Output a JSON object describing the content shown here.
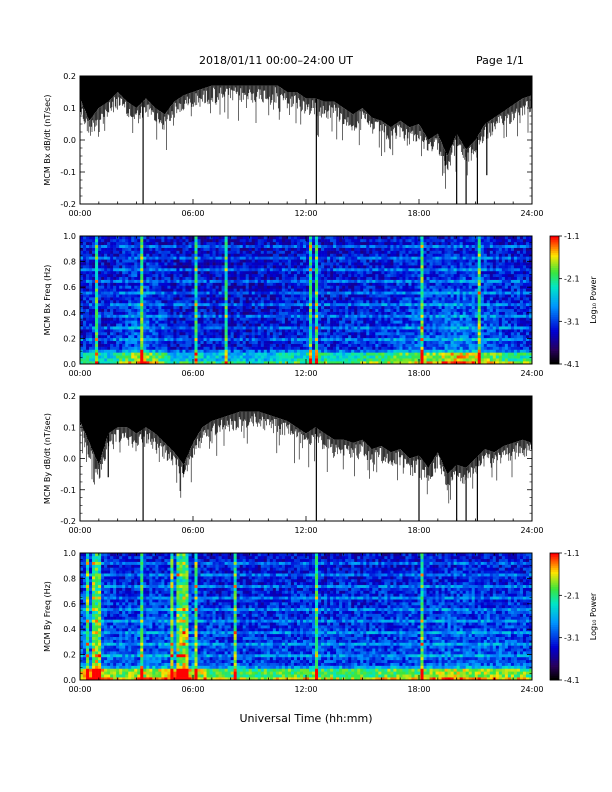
{
  "header": {
    "title": "2018/01/11  00:00–24:00 UT",
    "page": "Page 1/1"
  },
  "xlabel": "Universal Time (hh:mm)",
  "colors": {
    "trace": "#000000",
    "background": "#ffffff"
  },
  "chart_data": [
    {
      "type": "line",
      "ylabel": "MCM Bx dB/dt (nT/sec)",
      "xlim": [
        0,
        24
      ],
      "ylim": [
        -0.2,
        0.2
      ],
      "x_ticks": [
        "00:00",
        "06:00",
        "12:00",
        "18:00",
        "24:00"
      ],
      "y_ticks": [
        "-0.2",
        "-0.1",
        "0.0",
        "0.1",
        "0.2"
      ],
      "series": [
        {
          "x": [
            0,
            0.5,
            1,
            1.5,
            2,
            2.5,
            3,
            3.5,
            4,
            4.5,
            5,
            5.5,
            6,
            6.5,
            7,
            7.5,
            8,
            8.5,
            9,
            9.5,
            10,
            10.5,
            11,
            11.5,
            12,
            12.5,
            13,
            13.5,
            14,
            14.5,
            15,
            15.5,
            16,
            16.5,
            17,
            17.5,
            18,
            18.5,
            19,
            19.5,
            20,
            20.5,
            21,
            21.5,
            22,
            22.5,
            23,
            23.5,
            24
          ],
          "upper": [
            0.2,
            0.2,
            0.2,
            0.2,
            0.2,
            0.2,
            0.2,
            0.2,
            0.2,
            0.2,
            0.2,
            0.2,
            0.2,
            0.2,
            0.2,
            0.2,
            0.2,
            0.2,
            0.2,
            0.2,
            0.2,
            0.2,
            0.2,
            0.2,
            0.2,
            0.2,
            0.2,
            0.2,
            0.2,
            0.2,
            0.2,
            0.2,
            0.2,
            0.2,
            0.2,
            0.2,
            0.2,
            0.2,
            0.2,
            0.2,
            0.2,
            0.2,
            0.2,
            0.2,
            0.2,
            0.2,
            0.2,
            0.2,
            0.2
          ],
          "lower": [
            0.13,
            0.06,
            0.1,
            0.12,
            0.15,
            0.12,
            0.1,
            0.13,
            0.1,
            0.08,
            0.12,
            0.14,
            0.15,
            0.16,
            0.17,
            0.17,
            0.17,
            0.17,
            0.17,
            0.17,
            0.17,
            0.17,
            0.15,
            0.15,
            0.13,
            0.13,
            0.12,
            0.12,
            0.1,
            0.08,
            0.1,
            0.07,
            0.06,
            0.04,
            0.06,
            0.04,
            0.05,
            0.0,
            0.02,
            -0.05,
            0.02,
            -0.03,
            0.0,
            0.05,
            0.07,
            0.09,
            0.11,
            0.13,
            0.14
          ]
        }
      ],
      "spikes": [
        {
          "x": 3.35,
          "y": -0.2
        },
        {
          "x": 12.55,
          "y": -0.2
        },
        {
          "x": 19.4,
          "y": -0.08
        },
        {
          "x": 20.0,
          "y": -0.2
        },
        {
          "x": 20.5,
          "y": -0.2
        },
        {
          "x": 21.1,
          "y": -0.2
        },
        {
          "x": 21.6,
          "y": -0.11
        }
      ]
    },
    {
      "type": "heatmap",
      "ylabel": "MCM Bx Freq (Hz)",
      "xlim": [
        0,
        24
      ],
      "ylim": [
        0,
        1
      ],
      "x_ticks": [
        "00:00",
        "06:00",
        "12:00",
        "18:00",
        "24:00"
      ],
      "y_ticks": [
        "0.0",
        "0.2",
        "0.4",
        "0.6",
        "0.8",
        "1.0"
      ],
      "colorbar": {
        "label": "Log₁₀ Power",
        "range": [
          -4.1,
          -1.1
        ],
        "ticks": [
          "-4.1",
          "-3.1",
          "-2.1",
          "-1.1"
        ]
      },
      "activity": [
        {
          "t": 0,
          "a": 0.3
        },
        {
          "t": 1.5,
          "a": 0.25
        },
        {
          "t": 3.3,
          "a": 0.7
        },
        {
          "t": 5,
          "a": 0.2
        },
        {
          "t": 6,
          "a": 0.25
        },
        {
          "t": 9,
          "a": 0.15
        },
        {
          "t": 12.5,
          "a": 0.35
        },
        {
          "t": 14,
          "a": 0.3
        },
        {
          "t": 16,
          "a": 0.4
        },
        {
          "t": 17.5,
          "a": 0.55
        },
        {
          "t": 19,
          "a": 0.6
        },
        {
          "t": 20,
          "a": 0.75
        },
        {
          "t": 21,
          "a": 0.65
        },
        {
          "t": 22,
          "a": 0.5
        },
        {
          "t": 24,
          "a": 0.35
        }
      ],
      "vertical_stripes": [
        0.9,
        3.35,
        6.1,
        7.7,
        12.3,
        12.55,
        18.2,
        21.2
      ]
    },
    {
      "type": "line",
      "ylabel": "MCM By dB/dt (nT/sec)",
      "xlim": [
        0,
        24
      ],
      "ylim": [
        -0.2,
        0.2
      ],
      "x_ticks": [
        "00:00",
        "06:00",
        "12:00",
        "18:00",
        "24:00"
      ],
      "y_ticks": [
        "-0.2",
        "-0.1",
        "0.0",
        "0.1",
        "0.2"
      ],
      "series": [
        {
          "x": [
            0,
            0.5,
            1,
            1.5,
            2,
            2.5,
            3,
            3.5,
            4,
            4.5,
            5,
            5.5,
            6,
            6.5,
            7,
            7.5,
            8,
            8.5,
            9,
            9.5,
            10,
            10.5,
            11,
            11.5,
            12,
            12.5,
            13,
            13.5,
            14,
            14.5,
            15,
            15.5,
            16,
            16.5,
            17,
            17.5,
            18,
            18.5,
            19,
            19.5,
            20,
            20.5,
            21,
            21.5,
            22,
            22.5,
            23,
            23.5,
            24
          ],
          "upper": [
            0.2,
            0.2,
            0.2,
            0.2,
            0.2,
            0.2,
            0.2,
            0.2,
            0.2,
            0.2,
            0.2,
            0.2,
            0.2,
            0.2,
            0.2,
            0.2,
            0.2,
            0.2,
            0.2,
            0.2,
            0.2,
            0.2,
            0.2,
            0.2,
            0.2,
            0.2,
            0.2,
            0.2,
            0.2,
            0.2,
            0.2,
            0.2,
            0.2,
            0.2,
            0.2,
            0.2,
            0.2,
            0.2,
            0.2,
            0.2,
            0.2,
            0.2,
            0.2,
            0.2,
            0.2,
            0.2,
            0.2,
            0.2,
            0.2
          ],
          "lower": [
            0.12,
            0.05,
            -0.02,
            0.08,
            0.1,
            0.1,
            0.08,
            0.1,
            0.08,
            0.05,
            0.02,
            -0.02,
            0.05,
            0.1,
            0.12,
            0.13,
            0.14,
            0.15,
            0.15,
            0.15,
            0.14,
            0.13,
            0.12,
            0.1,
            0.08,
            0.1,
            0.08,
            0.06,
            0.06,
            0.05,
            0.06,
            0.03,
            0.04,
            0.02,
            0.03,
            0.0,
            0.01,
            -0.03,
            0.02,
            -0.05,
            -0.02,
            -0.03,
            0.0,
            0.03,
            0.02,
            0.04,
            0.05,
            0.06,
            0.05
          ]
        }
      ],
      "spikes": [
        {
          "x": 1.5,
          "y": -0.06
        },
        {
          "x": 3.35,
          "y": -0.2
        },
        {
          "x": 5.5,
          "y": -0.05
        },
        {
          "x": 12.55,
          "y": -0.2
        },
        {
          "x": 18.0,
          "y": -0.2
        },
        {
          "x": 20.0,
          "y": -0.2
        },
        {
          "x": 20.5,
          "y": -0.2
        },
        {
          "x": 21.1,
          "y": -0.2
        }
      ]
    },
    {
      "type": "heatmap",
      "ylabel": "MCM By Freq (Hz)",
      "xlim": [
        0,
        24
      ],
      "ylim": [
        0,
        1
      ],
      "x_ticks": [
        "00:00",
        "06:00",
        "12:00",
        "18:00",
        "24:00"
      ],
      "y_ticks": [
        "0.0",
        "0.2",
        "0.4",
        "0.6",
        "0.8",
        "1.0"
      ],
      "colorbar": {
        "label": "Log₁₀ Power",
        "range": [
          -4.1,
          -1.1
        ],
        "ticks": [
          "-4.1",
          "-3.1",
          "-2.1",
          "-1.1"
        ]
      },
      "activity": [
        {
          "t": 0,
          "a": 0.65
        },
        {
          "t": 1,
          "a": 0.75
        },
        {
          "t": 2,
          "a": 0.55
        },
        {
          "t": 3.3,
          "a": 0.6
        },
        {
          "t": 5,
          "a": 0.7
        },
        {
          "t": 5.5,
          "a": 0.8
        },
        {
          "t": 7,
          "a": 0.5
        },
        {
          "t": 9,
          "a": 0.45
        },
        {
          "t": 12,
          "a": 0.5
        },
        {
          "t": 14,
          "a": 0.45
        },
        {
          "t": 16,
          "a": 0.5
        },
        {
          "t": 18,
          "a": 0.55
        },
        {
          "t": 20,
          "a": 0.65
        },
        {
          "t": 22,
          "a": 0.6
        },
        {
          "t": 24,
          "a": 0.5
        }
      ],
      "vertical_stripes": [
        0.4,
        0.8,
        1.0,
        3.35,
        4.9,
        5.2,
        5.4,
        5.6,
        6.2,
        8.3,
        12.55,
        18.2
      ]
    }
  ]
}
